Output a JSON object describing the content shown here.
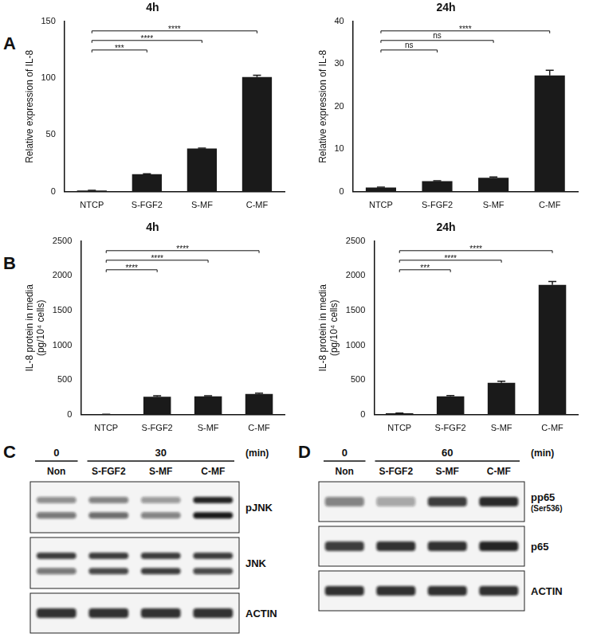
{
  "chart_data": [
    {
      "panel": "A",
      "type": "bar",
      "title": "4h",
      "y_label": "Relative expression of IL-8",
      "categories": [
        "NTCP",
        "S-FGF2",
        "S-MF",
        "C-MF"
      ],
      "values": [
        1,
        15.5,
        38,
        101
      ],
      "errors": [
        0.3,
        0.3,
        0.4,
        1.5
      ],
      "color": "#1a1a1a",
      "ylim": [
        0,
        150
      ],
      "yticks": [
        0,
        50,
        100,
        150
      ],
      "significance": [
        {
          "from": "NTCP",
          "to": "S-FGF2",
          "label": "***"
        },
        {
          "from": "NTCP",
          "to": "S-MF",
          "label": "****"
        },
        {
          "from": "NTCP",
          "to": "C-MF",
          "label": "****"
        }
      ]
    },
    {
      "type": "bar",
      "title": "24h",
      "y_label": "Relative expression of IL-8",
      "categories": [
        "NTCP",
        "S-FGF2",
        "S-MF",
        "C-MF"
      ],
      "values": [
        1,
        2.5,
        3.3,
        27.3
      ],
      "errors": [
        0.1,
        0.1,
        0.15,
        1.2
      ],
      "color": "#1a1a1a",
      "ylim": [
        0,
        40
      ],
      "yticks": [
        0,
        10,
        20,
        30,
        40
      ],
      "significance": [
        {
          "from": "NTCP",
          "to": "S-FGF2",
          "label": "ns"
        },
        {
          "from": "NTCP",
          "to": "S-MF",
          "label": "ns"
        },
        {
          "from": "NTCP",
          "to": "C-MF",
          "label": "****"
        }
      ]
    },
    {
      "panel": "B",
      "type": "bar",
      "title": "4h",
      "y_label": [
        "IL-8 protein in media",
        "(pg/10⁴ cells)"
      ],
      "categories": [
        "NTCP",
        "S-FGF2",
        "S-MF",
        "C-MF"
      ],
      "values": [
        5,
        260,
        265,
        300
      ],
      "errors": [
        2,
        12,
        8,
        10
      ],
      "color": "#1a1a1a",
      "ylim": [
        0,
        2500
      ],
      "yticks": [
        0,
        500,
        1000,
        1500,
        2000,
        2500
      ],
      "significance": [
        {
          "from": "NTCP",
          "to": "S-FGF2",
          "label": "****"
        },
        {
          "from": "NTCP",
          "to": "S-MF",
          "label": "****"
        },
        {
          "from": "NTCP",
          "to": "C-MF",
          "label": "****"
        }
      ]
    },
    {
      "type": "bar",
      "title": "24h",
      "y_label": [
        "IL-8 protein in media",
        "(pg/10⁴ cells)"
      ],
      "categories": [
        "NTCP",
        "S-FGF2",
        "S-MF",
        "C-MF"
      ],
      "values": [
        20,
        265,
        460,
        1870
      ],
      "errors": [
        3,
        10,
        22,
        50
      ],
      "color": "#1a1a1a",
      "ylim": [
        0,
        2500
      ],
      "yticks": [
        0,
        500,
        1000,
        1500,
        2000,
        2500
      ],
      "significance": [
        {
          "from": "NTCP",
          "to": "S-FGF2",
          "label": "***"
        },
        {
          "from": "NTCP",
          "to": "S-MF",
          "label": "****"
        },
        {
          "from": "NTCP",
          "to": "C-MF",
          "label": "****"
        }
      ]
    }
  ],
  "blots": [
    {
      "panel": "C",
      "unit": "(min)",
      "time_groups": [
        {
          "label": "0",
          "lanes": [
            "Non"
          ]
        },
        {
          "label": "30",
          "lanes": [
            "S-FGF2",
            "S-MF",
            "C-MF"
          ]
        }
      ],
      "lanes": [
        "Non",
        "S-FGF2",
        "S-MF",
        "C-MF"
      ],
      "rows": [
        {
          "label": "pJNK",
          "bands": [
            [
              0.45,
              0.55
            ],
            [
              0.5,
              0.6
            ],
            [
              0.4,
              0.5
            ],
            [
              0.9,
              0.95
            ]
          ]
        },
        {
          "label": "JNK",
          "bands": [
            [
              0.8,
              0.55
            ],
            [
              0.8,
              0.75
            ],
            [
              0.8,
              0.8
            ],
            [
              0.8,
              0.75
            ]
          ]
        },
        {
          "label": "ACTIN",
          "bands": [
            [
              0.85
            ],
            [
              0.85
            ],
            [
              0.85
            ],
            [
              0.85
            ]
          ]
        }
      ]
    },
    {
      "panel": "D",
      "unit": "(min)",
      "time_groups": [
        {
          "label": "0",
          "lanes": [
            "Non"
          ]
        },
        {
          "label": "60",
          "lanes": [
            "S-FGF2",
            "S-MF",
            "C-MF"
          ]
        }
      ],
      "lanes": [
        "Non",
        "S-FGF2",
        "S-MF",
        "C-MF"
      ],
      "rows": [
        {
          "label": "pp65",
          "sublabel": "(Ser536)",
          "bands": [
            [
              0.5
            ],
            [
              0.35
            ],
            [
              0.8
            ],
            [
              0.88
            ]
          ]
        },
        {
          "label": "p65",
          "bands": [
            [
              0.8
            ],
            [
              0.85
            ],
            [
              0.85
            ],
            [
              0.9
            ]
          ]
        },
        {
          "label": "ACTIN",
          "bands": [
            [
              0.85
            ],
            [
              0.85
            ],
            [
              0.85
            ],
            [
              0.85
            ]
          ]
        }
      ]
    }
  ]
}
